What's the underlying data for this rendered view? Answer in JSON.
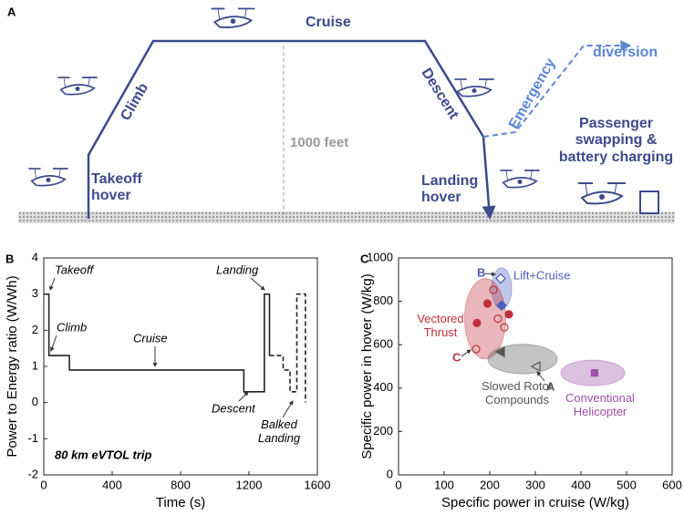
{
  "diagram": {
    "panel": "A",
    "cruise": "Cruise",
    "climb": "Climb",
    "takeoff": "Takeoff hover",
    "descent": "Descent",
    "emergency": "Emergency",
    "diversion": "diversion",
    "landing": "Landing hover",
    "height": "1000 feet",
    "ground_station": "Passenger swapping & battery charging"
  },
  "chart_data": [
    {
      "type": "line",
      "panel": "B",
      "xlabel": "Time (s)",
      "ylabel": "Power to Energy ratio (W/Wh)",
      "xlim": [
        0,
        1600
      ],
      "xticks": [
        0,
        400,
        800,
        1200,
        1600
      ],
      "ylim": [
        -2,
        4
      ],
      "yticks": [
        -2,
        -1,
        0,
        1,
        2,
        3,
        4
      ],
      "series": [
        {
          "x": [
            0,
            30,
            30,
            150,
            150,
            1170,
            1170,
            1290,
            1290,
            1320,
            1320
          ],
          "values": [
            3,
            3,
            1.3,
            1.3,
            0.9,
            0.9,
            0.3,
            0.3,
            3,
            3,
            1.3
          ],
          "color": "#222222",
          "dashed": false
        },
        {
          "x": [
            1320,
            1400,
            1400,
            1440,
            1440,
            1480,
            1480,
            1530,
            1530
          ],
          "values": [
            1.3,
            1.3,
            0.9,
            0.9,
            0.3,
            0.3,
            3,
            3,
            0
          ],
          "color": "#222222",
          "dashed": true
        }
      ],
      "annotations": [
        "Takeoff",
        "Climb",
        "Cruise",
        "Landing",
        "Descent",
        "Balked Landing",
        "80 km eVTOL trip"
      ]
    },
    {
      "type": "scatter",
      "panel": "C",
      "xlabel": "Specific power in cruise (W/kg)",
      "ylabel": "Specific power in hover (W/kg)",
      "xlim": [
        0,
        600
      ],
      "xticks": [
        0,
        100,
        200,
        300,
        400,
        500,
        600
      ],
      "ylim": [
        0,
        1000
      ],
      "yticks": [
        0,
        200,
        400,
        600,
        800,
        1000
      ],
      "series": [
        {
          "name": "Lift+Cruise",
          "color": "#4a5fb8",
          "x": [
            224,
            226
          ],
          "values": [
            905,
            781
          ],
          "region": {
            "x": 226,
            "y": 860,
            "rx": 22,
            "ry": 95
          }
        },
        {
          "name": "Vectored Thrust",
          "color": "#c0303a",
          "x": [
            208,
            195,
            218,
            242,
            232,
            172,
            170
          ],
          "values": [
            853,
            790,
            720,
            740,
            680,
            700,
            580
          ],
          "region": {
            "x": 190,
            "y": 720,
            "rx": 45,
            "ry": 185
          }
        },
        {
          "name": "Slowed Rotor Compounds",
          "color": "#555555",
          "x": [
            224,
            302
          ],
          "values": [
            567,
            500
          ],
          "region": {
            "x": 272,
            "y": 534,
            "rx": 76,
            "ry": 68
          }
        },
        {
          "name": "Conventional Helicopter",
          "color": "#9b4fa6",
          "x": [
            430
          ],
          "values": [
            470
          ],
          "region": {
            "x": 426,
            "y": 470,
            "rx": 70,
            "ry": 59
          }
        }
      ],
      "annotations": [
        "B",
        "C",
        "A"
      ]
    }
  ]
}
